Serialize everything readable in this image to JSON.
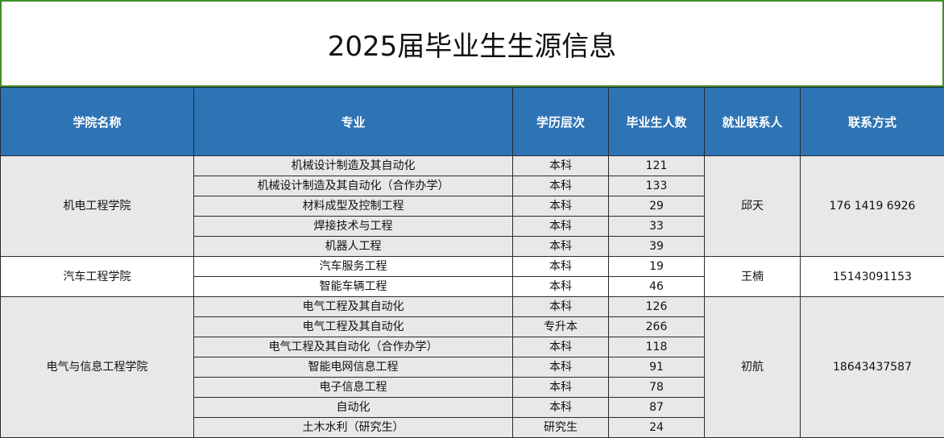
{
  "title": "2025届毕业生生源信息",
  "headers": [
    "学院名称",
    "专业",
    "学历层次",
    "毕业生人数",
    "就业联系人",
    "联系方式"
  ],
  "groups": [
    {
      "college": "机电工程学院",
      "contact": "邱天",
      "phone": "176 1419 6926",
      "rows": [
        {
          "major": "机械设计制造及其自动化",
          "level": "本科",
          "count": "121"
        },
        {
          "major": "机械设计制造及其自动化（合作办学）",
          "level": "本科",
          "count": "133"
        },
        {
          "major": "材料成型及控制工程",
          "level": "本科",
          "count": "29"
        },
        {
          "major": "焊接技术与工程",
          "level": "本科",
          "count": "33"
        },
        {
          "major": "机器人工程",
          "level": "本科",
          "count": "39"
        }
      ]
    },
    {
      "college": "汽车工程学院",
      "contact": "王楠",
      "phone": "15143091153",
      "rows": [
        {
          "major": "汽车服务工程",
          "level": "本科",
          "count": "19"
        },
        {
          "major": "智能车辆工程",
          "level": "本科",
          "count": "46"
        }
      ]
    },
    {
      "college": "电气与信息工程学院",
      "contact": "初航",
      "phone": "18643437587",
      "rows": [
        {
          "major": "电气工程及其自动化",
          "level": "本科",
          "count": "126"
        },
        {
          "major": "电气工程及其自动化",
          "level": "专升本",
          "count": "266"
        },
        {
          "major": "电气工程及其自动化（合作办学）",
          "level": "本科",
          "count": "118"
        },
        {
          "major": "智能电网信息工程",
          "level": "本科",
          "count": "91"
        },
        {
          "major": "电子信息工程",
          "level": "本科",
          "count": "78"
        },
        {
          "major": "自动化",
          "level": "本科",
          "count": "87"
        },
        {
          "major": "土木水利（研究生）",
          "level": "研究生",
          "count": "24"
        }
      ]
    }
  ]
}
